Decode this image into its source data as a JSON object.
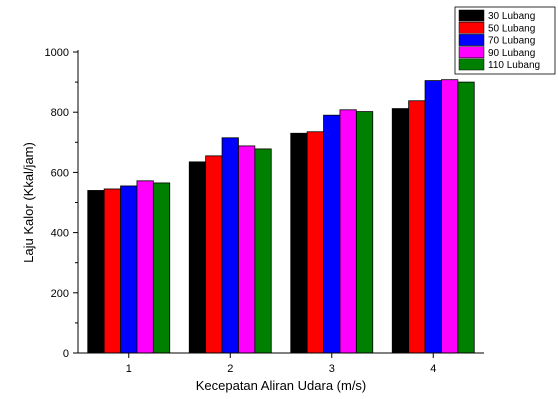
{
  "chart_data": {
    "type": "bar",
    "categories": [
      "1",
      "2",
      "3",
      "4"
    ],
    "series": [
      {
        "name": "30 Lubang",
        "color": "#000000",
        "values": [
          540,
          635,
          730,
          812
        ]
      },
      {
        "name": "50 Lubang",
        "color": "#ff0000",
        "values": [
          545,
          655,
          735,
          838
        ]
      },
      {
        "name": "70 Lubang",
        "color": "#0000ff",
        "values": [
          555,
          715,
          790,
          905
        ]
      },
      {
        "name": "90 Lubang",
        "color": "#ff00ff",
        "values": [
          572,
          688,
          808,
          908
        ]
      },
      {
        "name": "110 Lubang",
        "color": "#008000",
        "values": [
          565,
          678,
          802,
          900
        ]
      }
    ],
    "xlabel": "Kecepatan Aliran Udara (m/s)",
    "ylabel": "Laju Kalor (Kkal/jam)",
    "ylim": [
      0,
      1000
    ],
    "yticks": [
      0,
      200,
      400,
      600,
      800,
      1000
    ],
    "grid": false,
    "legend_position": "top-right"
  }
}
